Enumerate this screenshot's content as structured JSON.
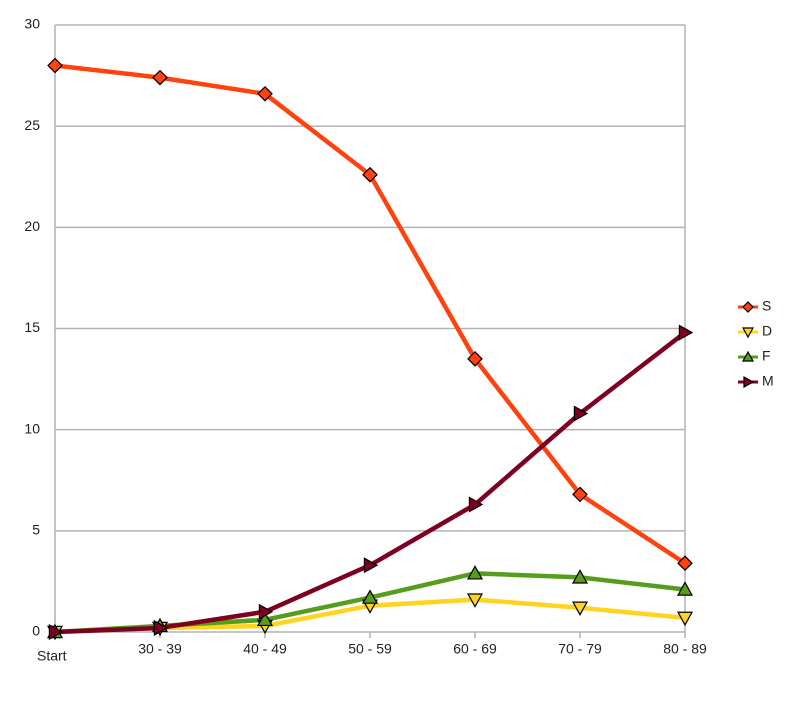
{
  "chart_data": {
    "type": "line",
    "categories": [
      "Start",
      "30 - 39",
      "40 - 49",
      "50 - 59",
      "60 - 69",
      "70 - 79",
      "80 - 89"
    ],
    "series": [
      {
        "name": "S",
        "color": "#ff420e",
        "marker": "diamond",
        "values": [
          28.0,
          27.4,
          26.6,
          22.6,
          13.5,
          6.8,
          3.4
        ]
      },
      {
        "name": "D",
        "color": "#ffd320",
        "marker": "triangle-down",
        "values": [
          0,
          0.2,
          0.3,
          1.3,
          1.6,
          1.2,
          0.7
        ]
      },
      {
        "name": "F",
        "color": "#579d1c",
        "marker": "triangle-up",
        "values": [
          0,
          0.3,
          0.6,
          1.7,
          2.9,
          2.7,
          2.1
        ]
      },
      {
        "name": "M",
        "color": "#7e0021",
        "marker": "triangle-right",
        "values": [
          0,
          0.2,
          1.0,
          3.3,
          6.3,
          10.8,
          14.8
        ]
      }
    ],
    "ylim": [
      0,
      30
    ],
    "yticks": [
      0,
      5,
      10,
      15,
      20,
      25,
      30
    ],
    "grid": true,
    "legend": "right"
  }
}
